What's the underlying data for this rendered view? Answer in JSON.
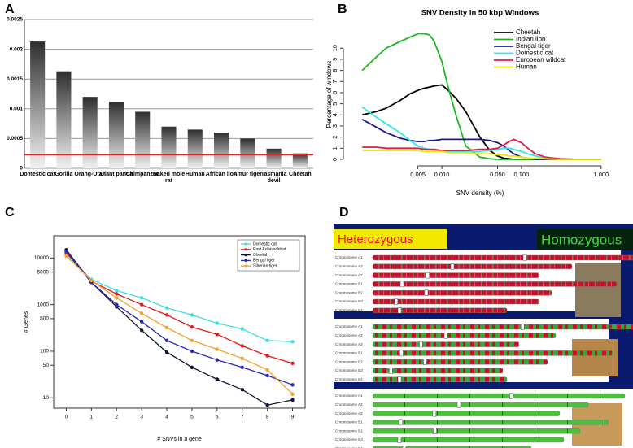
{
  "chart_data": [
    {
      "type": "bar",
      "label": "A",
      "categories": [
        "Domestic cat",
        "Gorilla",
        "Orang-Utan",
        "Giant panda",
        "Chimpanzee",
        "Naked mole rat",
        "Human",
        "African lion",
        "Amur tiger",
        "Tasmania devil",
        "Cheetah"
      ],
      "values": [
        0.00213,
        0.00163,
        0.0012,
        0.00112,
        0.00095,
        0.0007,
        0.00065,
        0.0006,
        0.0005,
        0.00033,
        0.00025
      ],
      "ylim": [
        0,
        0.0025
      ],
      "yticks": [
        0,
        0.0005,
        0.001,
        0.0015,
        0.002,
        0.0025
      ],
      "grid": true,
      "reference_line": {
        "value": 0.00023,
        "color": "#d62728"
      }
    },
    {
      "type": "line",
      "label": "B",
      "title": "SNV Density in 50 kbp Windows",
      "x_label": "SNV density (%)",
      "y_label": "Percentage of windows",
      "x_scale": "log",
      "x": [
        0.001,
        0.0015,
        0.002,
        0.003,
        0.004,
        0.005,
        0.006,
        0.007,
        0.008,
        0.01,
        0.012,
        0.015,
        0.02,
        0.03,
        0.04,
        0.05,
        0.06,
        0.07,
        0.08,
        0.1,
        0.12,
        0.15,
        0.2,
        0.3,
        0.5,
        1.0
      ],
      "xlim": [
        0.0007,
        1.3
      ],
      "xticks": [
        0.005,
        {
          "value": 0.01,
          "label": "0.010"
        },
        {
          "value": 0.05,
          "label": "0.050"
        },
        {
          "value": 0.1,
          "label": "0.100"
        },
        {
          "value": 1,
          "label": "1.000"
        }
      ],
      "ylim": [
        0,
        11.7
      ],
      "yticks": [
        0,
        1,
        2,
        3,
        4,
        5,
        6,
        7,
        8,
        9,
        10
      ],
      "legend": "top-right",
      "series": [
        {
          "name": "Cheetah",
          "color": "#000000",
          "values": [
            4.0,
            4.3,
            4.6,
            5.3,
            5.9,
            6.2,
            6.4,
            6.5,
            6.6,
            6.7,
            6.2,
            5.5,
            4.3,
            2.0,
            0.8,
            0.3,
            0.1,
            0.05,
            0,
            0,
            0,
            0,
            0,
            0,
            0,
            0
          ]
        },
        {
          "name": "Indian lion",
          "color": "#1fb51f",
          "values": [
            8.0,
            9.2,
            10.0,
            10.6,
            11.0,
            11.3,
            11.3,
            11.2,
            10.6,
            8.8,
            6.5,
            4.0,
            1.2,
            0.2,
            0.05,
            0,
            0,
            0,
            0,
            0,
            0,
            0,
            0,
            0,
            0,
            0
          ]
        },
        {
          "name": "Bengal tiger",
          "color": "#1a1a8c",
          "values": [
            3.6,
            2.9,
            2.4,
            1.9,
            1.7,
            1.6,
            1.6,
            1.7,
            1.7,
            1.8,
            1.8,
            1.8,
            1.8,
            1.8,
            1.7,
            1.5,
            1.2,
            0.8,
            0.5,
            0.2,
            0.1,
            0,
            0,
            0,
            0,
            0
          ]
        },
        {
          "name": "Domestic cat",
          "color": "#2ee6e6",
          "values": [
            4.7,
            3.8,
            3.2,
            2.4,
            1.7,
            1.2,
            1.0,
            0.9,
            0.8,
            0.8,
            0.7,
            0.7,
            0.7,
            0.7,
            0.8,
            0.9,
            1.0,
            1.0,
            0.9,
            0.7,
            0.5,
            0.3,
            0.1,
            0.05,
            0,
            0
          ]
        },
        {
          "name": "European wildcat",
          "color": "#e6194b",
          "values": [
            1.1,
            1.1,
            1.0,
            1.0,
            1.0,
            1.0,
            0.9,
            0.9,
            0.9,
            0.8,
            0.8,
            0.8,
            0.8,
            0.9,
            0.9,
            1.0,
            1.3,
            1.6,
            1.8,
            1.5,
            1.0,
            0.5,
            0.2,
            0.05,
            0,
            0
          ]
        },
        {
          "name": "Human",
          "color": "#f2e600",
          "values": [
            0.8,
            0.8,
            0.8,
            0.8,
            0.8,
            0.8,
            0.7,
            0.7,
            0.7,
            0.7,
            0.6,
            0.6,
            0.6,
            0.5,
            0.5,
            0.4,
            0.4,
            0.3,
            0.3,
            0.2,
            0.1,
            0.1,
            0.05,
            0,
            0,
            0
          ]
        }
      ]
    },
    {
      "type": "line",
      "label": "C",
      "x_label": "# SNVs in a gene",
      "y_label": "# Genes",
      "y_scale": "log",
      "x": [
        0,
        1,
        2,
        3,
        4,
        5,
        6,
        7,
        8,
        9
      ],
      "xlim": [
        -0.5,
        9.5
      ],
      "xticks": [
        0,
        1,
        2,
        3,
        4,
        5,
        6,
        7,
        8,
        9
      ],
      "ylim": [
        6,
        30000
      ],
      "yticks": [
        10,
        50,
        100,
        500,
        1000,
        5000,
        10000
      ],
      "legend": "top-right",
      "series": [
        {
          "name": "Domestic cat",
          "color": "#40e0e0",
          "values": [
            12000,
            3500,
            2000,
            1400,
            850,
            600,
            400,
            300,
            170,
            160
          ]
        },
        {
          "name": "East Asian wildcat",
          "color": "#e31a1c",
          "values": [
            13000,
            3200,
            1700,
            1000,
            600,
            330,
            230,
            130,
            80,
            55
          ]
        },
        {
          "name": "Cheetah",
          "color": "#111133",
          "values": [
            15000,
            3000,
            900,
            280,
            95,
            45,
            25,
            15,
            7,
            9
          ]
        },
        {
          "name": "Bengal tiger",
          "color": "#2828b4",
          "values": [
            14000,
            3000,
            1000,
            430,
            170,
            100,
            65,
            45,
            30,
            19
          ]
        },
        {
          "name": "Siberian tiger",
          "color": "#f5a030",
          "values": [
            11000,
            3300,
            1400,
            650,
            320,
            170,
            110,
            70,
            40,
            12
          ]
        }
      ]
    }
  ],
  "diagram": {
    "label": "D",
    "legend": [
      "Heterozygous",
      "Homozygous"
    ],
    "groups": [
      [
        "Chromosome A1",
        "Chromosome A2",
        "Chromosome A3",
        "Chromosome B1",
        "Chromosome B2",
        "Chromosome B3",
        "Chromosome B4"
      ],
      [
        "Chromosome A1",
        "Chromosome A2",
        "Chromosome A3",
        "Chromosome B1",
        "Chromosome B2",
        "Chromosome B3",
        "Chromosome B4"
      ],
      [
        "Chromosome A1",
        "Chromosome A2",
        "Chromosome A3",
        "Chromosome B1",
        "Chromosome B2",
        "Chromosome B3",
        "Chromosome B4"
      ]
    ]
  }
}
